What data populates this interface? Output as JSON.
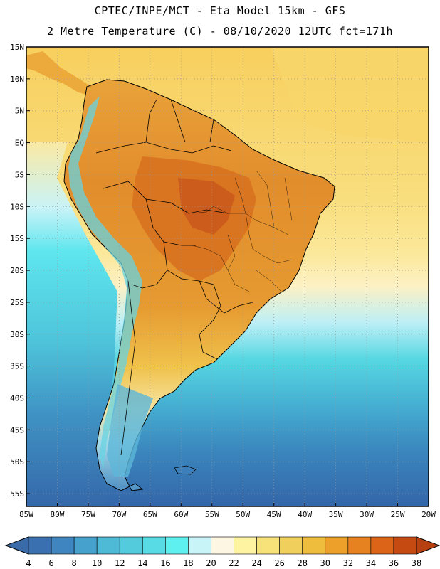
{
  "header": {
    "line1": "CPTEC/INPE/MCT -  Eta Model 15km - GFS",
    "line2": "2 Metre Temperature (C) - 08/10/2020 12UTC fct=171h"
  },
  "map": {
    "lat_labels": [
      "15N",
      "10N",
      "5N",
      "EQ",
      "5S",
      "10S",
      "15S",
      "20S",
      "25S",
      "30S",
      "35S",
      "40S",
      "45S",
      "50S",
      "55S"
    ],
    "lon_labels": [
      "85W",
      "80W",
      "75W",
      "70W",
      "65W",
      "60W",
      "55W",
      "50W",
      "45W",
      "40W",
      "35W",
      "30W",
      "25W",
      "20W"
    ],
    "lat_range": [
      15,
      -57
    ],
    "lon_range": [
      -85,
      -20
    ]
  },
  "colorbar": {
    "labels": [
      "4",
      "6",
      "8",
      "10",
      "12",
      "14",
      "16",
      "18",
      "20",
      "22",
      "24",
      "26",
      "28",
      "30",
      "32",
      "34",
      "36",
      "38"
    ],
    "colors": [
      "#3a6fb0",
      "#3f86c0",
      "#46a2cc",
      "#4fbad6",
      "#54cbdc",
      "#58dbe4",
      "#5ef0f0",
      "#c8f4f8",
      "#fdf6e2",
      "#fdf3a0",
      "#f7e27a",
      "#f1cf5c",
      "#eebd3e",
      "#eda12a",
      "#e6821f",
      "#dc6418",
      "#c44a12"
    ],
    "left_arrow_color": "#3b6aa8",
    "right_arrow_color": "#b6400f"
  }
}
